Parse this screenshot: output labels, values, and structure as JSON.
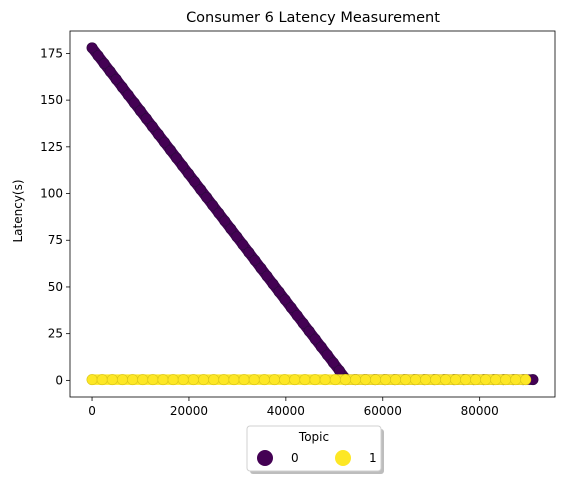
{
  "chart_data": {
    "type": "scatter",
    "title": "Consumer 6 Latency Measurement",
    "xlabel": "",
    "ylabel": "Latency(s)",
    "xlim": [
      -4550,
      95550
    ],
    "ylim": [
      -8.9,
      187.0
    ],
    "xticks": [
      0,
      20000,
      40000,
      60000,
      80000
    ],
    "yticks": [
      0,
      25,
      50,
      75,
      100,
      125,
      150,
      175
    ],
    "grid": false,
    "legend": {
      "title": "Topic",
      "placement": "bottom-center",
      "entries": [
        {
          "label": "0",
          "color": "#440154"
        },
        {
          "label": "1",
          "color": "#fde725"
        }
      ]
    },
    "series": [
      {
        "name": "0",
        "color": "#440154",
        "segments": [
          {
            "x": [
              0,
              52300
            ],
            "y": [
              178,
              1
            ]
          },
          {
            "x": [
              52300,
              91000
            ],
            "y": [
              0.4,
              0.4
            ]
          }
        ]
      },
      {
        "name": "1",
        "color": "#fde725",
        "segments": [
          {
            "x": [
              0,
              52300
            ],
            "y": [
              0.4,
              0.4
            ]
          },
          {
            "x": [
              52300,
              89500
            ],
            "y": [
              0.4,
              0.4
            ]
          }
        ]
      }
    ]
  }
}
